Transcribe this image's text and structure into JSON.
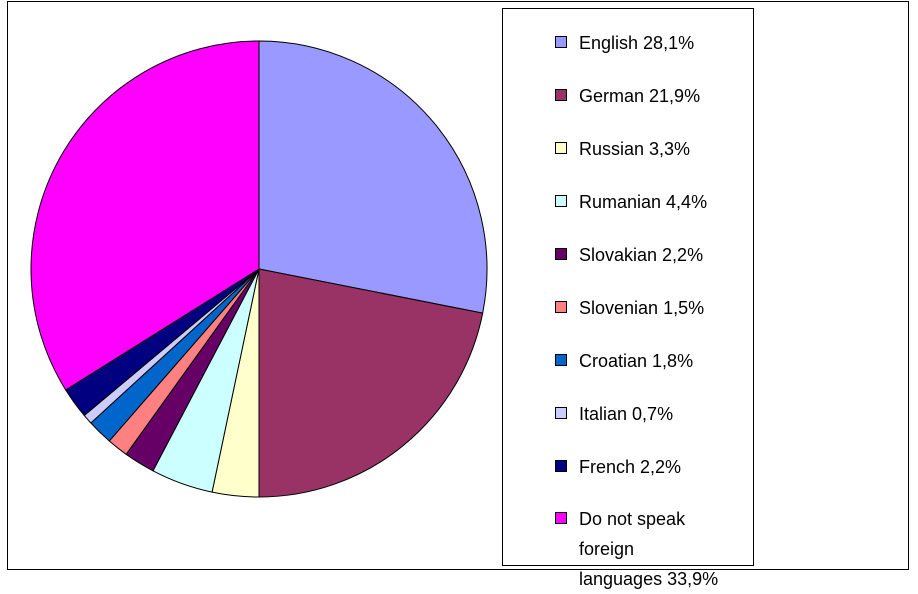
{
  "chart_data": {
    "type": "pie",
    "categories": [
      "English",
      "German",
      "Russian",
      "Rumanian",
      "Slovakian",
      "Slovenian",
      "Croatian",
      "Italian",
      "French",
      "Do not speak foreign languages"
    ],
    "values": [
      28.1,
      21.9,
      3.3,
      4.4,
      2.2,
      1.5,
      1.8,
      0.7,
      2.2,
      33.9
    ],
    "value_labels": [
      "28,1%",
      "21,9%",
      "3,3%",
      "4,4%",
      "2,2%",
      "1,5%",
      "1,8%",
      "0,7%",
      "2,2%",
      "33,9%"
    ],
    "colors": [
      "#9999ff",
      "#993366",
      "#ffffcc",
      "#ccffff",
      "#660066",
      "#ff8080",
      "#0066cc",
      "#ccccff",
      "#000080",
      "#ff00ff"
    ],
    "legend": "right"
  }
}
